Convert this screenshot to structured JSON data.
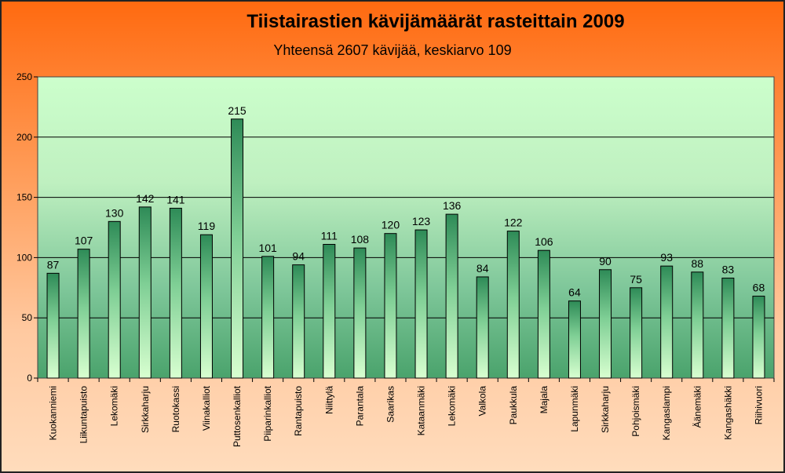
{
  "chart_data": {
    "type": "bar",
    "title": "Tiistairastien kävijämäärät rasteittain 2009",
    "subtitle": "Yhteensä 2607 kävijää, keskiarvo 109",
    "categories": [
      "Kuokanniemi",
      "Liikuntapuisto",
      "Lekomäki",
      "Sirkkaharju",
      "Ruotokassi",
      "Viinakalliot",
      "Puttosenkalliot",
      "Piiparinkalliot",
      "Rantapuisto",
      "Niittylä",
      "Parantala",
      "Saarikas",
      "Kataanmäki",
      "Lekomäki",
      "Valkola",
      "Paukkula",
      "Majala",
      "Lapunmäki",
      "Sirkkaharju",
      "Pohjoismäki",
      "Kangaslampi",
      "Äänemäki",
      "Kangashäkki",
      "Riihivuori"
    ],
    "values": [
      87,
      107,
      130,
      142,
      141,
      119,
      215,
      101,
      94,
      111,
      108,
      120,
      123,
      136,
      84,
      122,
      106,
      64,
      90,
      75,
      93,
      88,
      83,
      68
    ],
    "ylim": [
      0,
      250
    ],
    "yticks": [
      0,
      50,
      100,
      150,
      200,
      250
    ],
    "grid": true,
    "colors": {
      "bar_dark": "#2e8b57",
      "bar_light": "#d8ffd0",
      "plot_top": "#ccffcc",
      "plot_bottom": "#4aa36c"
    }
  }
}
